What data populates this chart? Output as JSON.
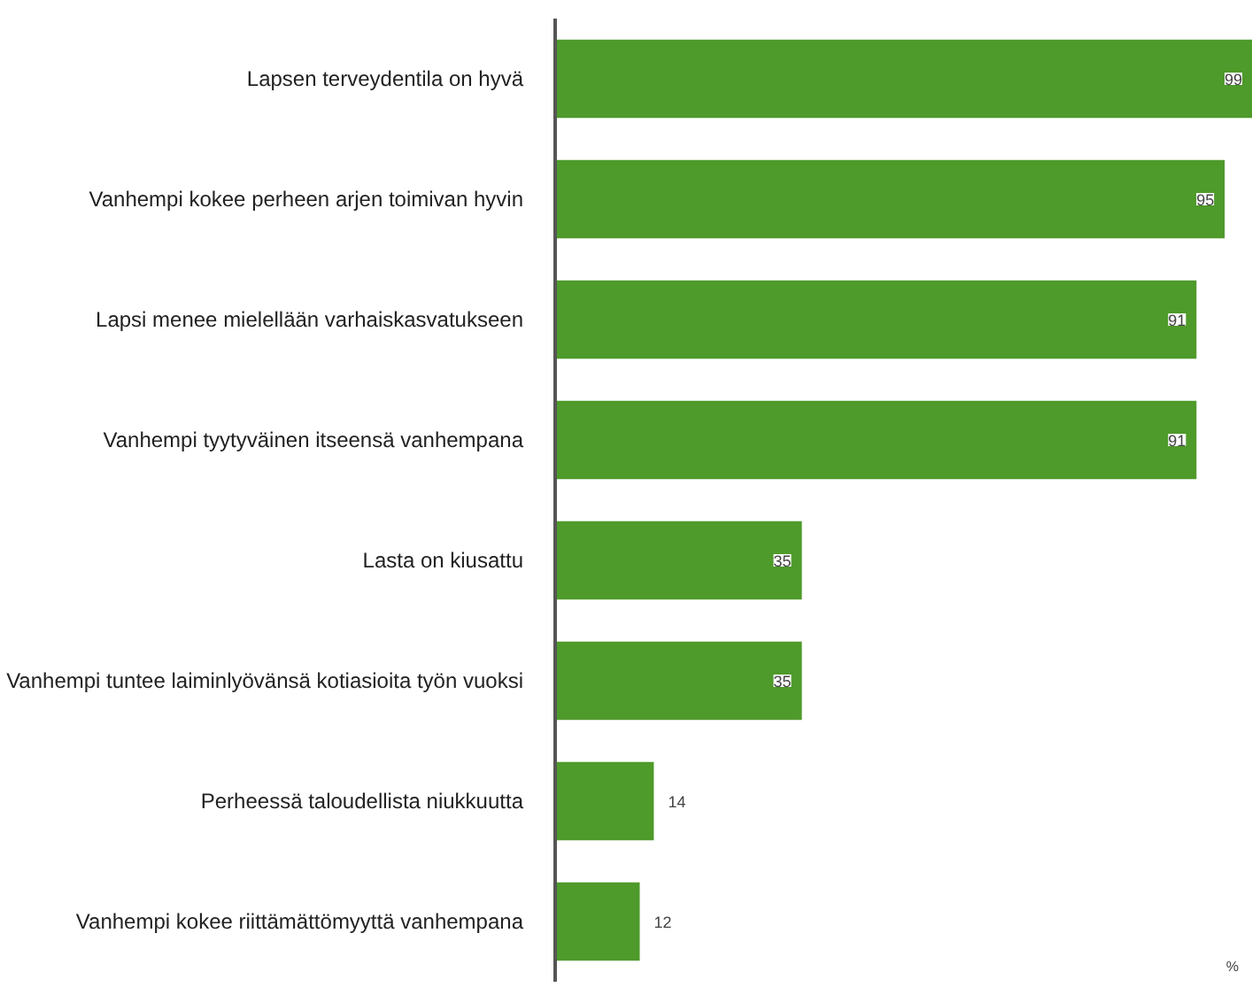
{
  "chart_data": {
    "type": "bar",
    "orientation": "horizontal",
    "categories": [
      "Lapsen terveydentila on hyvä",
      "Vanhempi kokee perheen arjen toimivan hyvin",
      "Lapsi menee mielellään varhaiskasvatukseen",
      "Vanhempi tyytyväinen itseensä vanhempana",
      "Lasta on kiusattu",
      "Vanhempi tuntee laiminlyövänsä kotiasioita työn vuoksi",
      "Perheessä taloudellista niukkuutta",
      "Vanhempi kokee riittämättömyyttä vanhempana"
    ],
    "values": [
      99,
      95,
      91,
      91,
      35,
      35,
      14,
      12
    ],
    "color": "#4e9a2a",
    "tick_labels": "y",
    "data_labels": true,
    "annotations": [
      "%"
    ]
  }
}
